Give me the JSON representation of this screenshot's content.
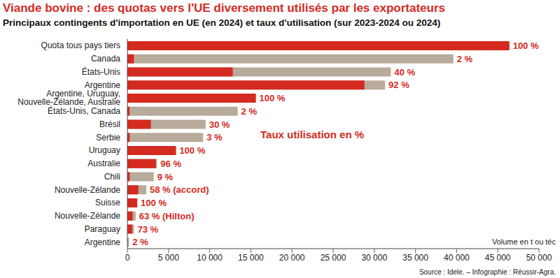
{
  "chart_data": {
    "type": "bar",
    "orientation": "horizontal",
    "title": "Viande bovine : des quotas vers l'UE diversement utilisés par les exportateurs",
    "subtitle": "Principaux contingents d'importation en UE (en 2024) et taux d'utilisation (sur 2023-2024 ou 2024)",
    "categories": [
      "Quota tous pays tiers",
      "Canada",
      "États-Unis",
      "Argentine",
      "Argentine, Uruguay, Nouvelle-Zélande, Australie",
      "États-Unis, Canada",
      "Brésil",
      "Serbie",
      "Uruguay",
      "Australie",
      "Chili",
      "Nouvelle-Zélande",
      "Suisse",
      "Nouvelle-Zélande",
      "Paraguay",
      "Argentine"
    ],
    "values": [
      46400,
      39600,
      32000,
      31300,
      15600,
      13400,
      9500,
      9200,
      5900,
      3600,
      3200,
      2300,
      1200,
      1000,
      800,
      200
    ],
    "color": "#b8ab9c",
    "utilization": {
      "color": "#d42a1f",
      "values": [
        100,
        2,
        40,
        92,
        100,
        2,
        30,
        3,
        100,
        96,
        9,
        58,
        100,
        63,
        73,
        2
      ],
      "value_labels": [
        "100 %",
        "2 %",
        "40 %",
        "92 %",
        "100 %",
        "2 %",
        "30 %",
        "3 %",
        "100 %",
        "96 %",
        "9 %",
        "58 % (accord)",
        "100 %",
        "63 % (Hilton)",
        "73 %",
        "2 %"
      ]
    },
    "data_labels": true,
    "grid": false,
    "xlim": [
      0,
      50000
    ],
    "xticks": [
      0,
      {
        "value": 5000,
        "label": "5 000"
      },
      {
        "value": 10000,
        "label": "10 000"
      },
      {
        "value": 15000,
        "label": "15 000"
      },
      {
        "value": 20000,
        "label": "20 000"
      },
      {
        "value": 25000,
        "label": "25 000"
      },
      {
        "value": 30000,
        "label": "30 000"
      },
      {
        "value": 35000,
        "label": "35 000"
      },
      {
        "value": 40000,
        "label": "40 000"
      },
      {
        "value": 45000,
        "label": "45 000"
      },
      {
        "value": 50000,
        "label": "50 000"
      }
    ],
    "annotations": [
      "Taux utilisation en %"
    ],
    "x_label": "Volume en t ou téc",
    "source": "Source : Idele. – Infographie : Réussir-Agra."
  }
}
